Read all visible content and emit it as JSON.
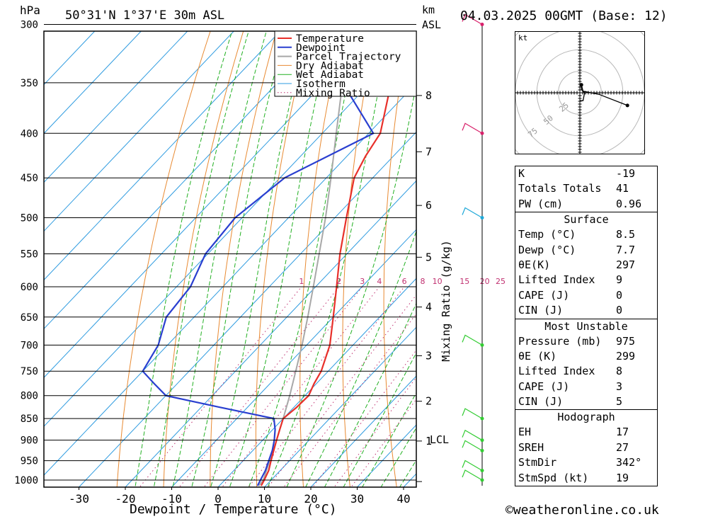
{
  "header": {
    "hpa_label": "hPa",
    "location": "50°31'N  1°37'E  30m  ASL",
    "km_label": "km",
    "asl_label": "ASL",
    "datetime": "04.03.2025  00GMT  (Base: 12)"
  },
  "footer": {
    "xlabel": "Dewpoint / Temperature (°C)",
    "watermark": "©weatheronline.co.uk",
    "mixing_label": "Mixing Ratio (g/kg)",
    "lcl": "LCL"
  },
  "chart_data": {
    "type": "line",
    "title": "",
    "xlabel": "Dewpoint / Temperature (°C)",
    "ylabel": "hPa",
    "xticks": [
      -30,
      -20,
      -10,
      0,
      10,
      20,
      30,
      40
    ],
    "pressure_levels": [
      300,
      350,
      400,
      450,
      500,
      550,
      600,
      650,
      700,
      750,
      800,
      850,
      900,
      950,
      1000
    ],
    "km_ticks": [
      {
        "p": 1004,
        "km": "LCL"
      },
      {
        "p": 902,
        "km": "1"
      },
      {
        "p": 812,
        "km": "2"
      },
      {
        "p": 720,
        "km": "3"
      },
      {
        "p": 633,
        "km": "4"
      },
      {
        "p": 555,
        "km": "5"
      },
      {
        "p": 484,
        "km": "6"
      },
      {
        "p": 420,
        "km": "7"
      },
      {
        "p": 362,
        "km": "8"
      }
    ],
    "mixing_ratio_labels": [
      "1",
      "2",
      "3",
      "4",
      "6",
      "8",
      "10",
      "15",
      "20",
      "25"
    ],
    "legend": [
      "Temperature",
      "Dewpoint",
      "Parcel Trajectory",
      "Dry Adiabat",
      "Wet Adiabat",
      "Isotherm",
      "Mixing Ratio"
    ],
    "series": [
      {
        "name": "Temperature",
        "color": "#e8302a",
        "p": [
          1015,
          1000,
          975,
          950,
          925,
          900,
          875,
          850,
          825,
          800,
          775,
          750,
          700,
          650,
          600,
          550,
          500,
          450,
          425,
          400,
          350,
          300
        ],
        "t": [
          9.0,
          8.5,
          7.5,
          6.0,
          4.5,
          3.0,
          1.5,
          0.0,
          0.6,
          0.8,
          -0.5,
          -1.5,
          -5.0,
          -10.0,
          -15.5,
          -21.5,
          -27.5,
          -34.0,
          -36.0,
          -37.5,
          -45.5,
          -54.5
        ]
      },
      {
        "name": "Dewpoint",
        "color": "#2a3fd0",
        "p": [
          1015,
          1000,
          975,
          950,
          925,
          900,
          875,
          850,
          825,
          800,
          775,
          750,
          700,
          650,
          600,
          550,
          500,
          450,
          400,
          350,
          300
        ],
        "t": [
          8.2,
          7.7,
          6.8,
          5.5,
          4.2,
          2.5,
          0.5,
          -2.0,
          -16.0,
          -30.0,
          -35.0,
          -40.0,
          -42.0,
          -46.0,
          -47.0,
          -50.5,
          -51.5,
          -49.0,
          -39.0,
          -56.0,
          -62.0
        ]
      },
      {
        "name": "Parcel Trajectory",
        "color": "#a8a8a8",
        "p": [
          1015,
          1000,
          950,
          900,
          850,
          800,
          750,
          700,
          650,
          600,
          550,
          500,
          450,
          400,
          350,
          300
        ],
        "t": [
          8.5,
          8.3,
          5.7,
          3.0,
          0.0,
          -3.3,
          -7.0,
          -11.0,
          -15.5,
          -20.5,
          -26.0,
          -32.0,
          -39.0,
          -47.0,
          -56.0,
          -66.0
        ]
      }
    ],
    "hodograph": {
      "u": [
        0,
        2,
        3,
        1,
        1,
        2,
        12,
        30
      ],
      "v": [
        -5,
        -5,
        0,
        2,
        5,
        1,
        -1,
        -8
      ]
    }
  },
  "indices": {
    "k_label": "K",
    "k_value": "-19",
    "tt_label": "Totals Totals",
    "tt_value": "41",
    "pw_label": "PW (cm)",
    "pw_value": "0.96"
  },
  "surface": {
    "title": "Surface",
    "temp_label": "Temp (°C)",
    "temp_value": "8.5",
    "dewp_label": "Dewp (°C)",
    "dewp_value": "7.7",
    "theta_label": "θE(K)",
    "theta_value": "297",
    "li_label": "Lifted Index",
    "li_value": "9",
    "cape_label": "CAPE (J)",
    "cape_value": "0",
    "cin_label": "CIN (J)",
    "cin_value": "0"
  },
  "most_unstable": {
    "title": "Most Unstable",
    "pressure_label": "Pressure (mb)",
    "pressure_value": "975",
    "theta_label": "θE (K)",
    "theta_value": "299",
    "li_label": "Lifted Index",
    "li_value": "8",
    "cape_label": "CAPE (J)",
    "cape_value": "3",
    "cin_label": "CIN (J)",
    "cin_value": "5"
  },
  "hodograph_table": {
    "title": "Hodograph",
    "eh_label": "EH",
    "eh_value": "17",
    "sreh_label": "SREH",
    "sreh_value": "27",
    "stmdir_label": "StmDir",
    "stmdir_value": "342°",
    "stmspd_label": "StmSpd (kt)",
    "stmspd_value": "19"
  },
  "hodo_labels": {
    "unit": "kt",
    "r25": "25",
    "r50": "50",
    "r75": "75"
  },
  "colors": {
    "temperature": "#e8302a",
    "dewpoint": "#2a3fd0",
    "parcel": "#a8a8a8",
    "dry": "#e88a32",
    "wet": "#22b022",
    "iso": "#2e9be0",
    "mix": "#c03070",
    "wind_high": "#d8206a",
    "wind_mid": "#1ea8d8",
    "wind_low": "#33cc33"
  }
}
